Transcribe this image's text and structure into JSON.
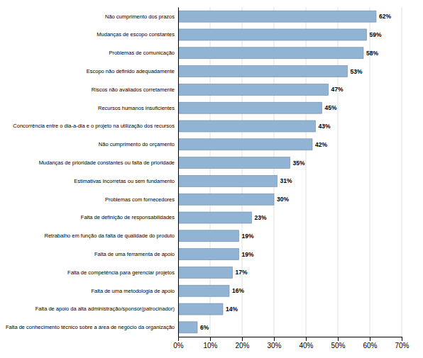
{
  "chart_data": {
    "type": "bar",
    "orientation": "horizontal",
    "categories": [
      "Falta de conhecimento técnico sobre a área de negócio da organização",
      "Falta de apoio da alta administração/sponsor(patrocinador)",
      "Falta de uma metodologia de apoio",
      "Falta de competência para gerenciar projetos",
      "Falta de uma ferramenta de apoio",
      "Retrabalho em função da falta de qualidade do produto",
      "Falta de definição de responsabilidades",
      "Problemas com fornecedores",
      "Estimativas incorretas ou sem fundamento",
      "Mudanças de prioridade constantes ou falta de prioridade",
      "Não cumprimento do orçamento",
      "Concorrência entre o dia-a-dia e o projeto na utilização dos recursos",
      "Recursos humanos insuficientes",
      "Riscos não avaliados corretamente",
      "Escopo não definido adequadamente",
      "Problemas de comunicação",
      "Mudanças de escopo constantes",
      "Não cumprimento dos prazos"
    ],
    "values": [
      6,
      14,
      16,
      17,
      19,
      19,
      23,
      30,
      31,
      35,
      42,
      43,
      45,
      47,
      53,
      58,
      59,
      62
    ],
    "value_labels": [
      "6%",
      "14%",
      "16%",
      "17%",
      "19%",
      "19%",
      "23%",
      "30%",
      "31%",
      "35%",
      "42%",
      "43%",
      "45%",
      "47%",
      "53%",
      "58%",
      "59%",
      "62%"
    ],
    "data_labels": true,
    "color": "#92b4d4",
    "xlim": [
      0,
      70
    ],
    "xticks": [
      {
        "value": 0,
        "label": "0%"
      },
      {
        "value": 10,
        "label": "10%"
      },
      {
        "value": 20,
        "label": "20%"
      },
      {
        "value": 30,
        "label": "30%"
      },
      {
        "value": 40,
        "label": "40%"
      },
      {
        "value": 50,
        "label": "50%"
      },
      {
        "value": 60,
        "label": "60%"
      },
      {
        "value": 70,
        "label": "70%"
      }
    ],
    "grid": true
  }
}
